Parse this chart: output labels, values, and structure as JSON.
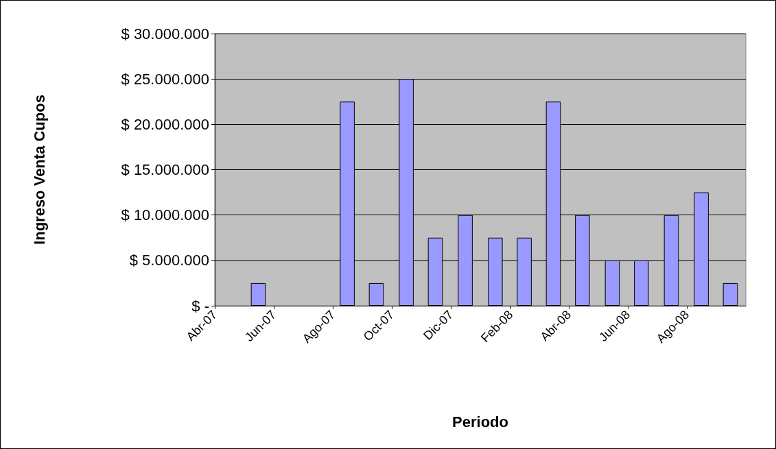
{
  "chart_data": {
    "type": "bar",
    "xlabel": "Periodo",
    "ylabel": "Ingreso Venta Cupos",
    "x": [
      "2007-05-16",
      "2007-08-16",
      "2007-09-15",
      "2007-10-16",
      "2007-11-15",
      "2007-12-16",
      "2008-01-16",
      "2008-02-15",
      "2008-03-16",
      "2008-04-15",
      "2008-05-16",
      "2008-06-15",
      "2008-07-16",
      "2008-08-16",
      "2008-09-15"
    ],
    "values": [
      2500000,
      22500000,
      2500000,
      25000000,
      7500000,
      10000000,
      7500000,
      7500000,
      22500000,
      10000000,
      5000000,
      5000000,
      10000000,
      12500000,
      2500000
    ],
    "color": "#9999ff",
    "xlim": [
      "2007-04",
      "2008-10"
    ],
    "xticks": [
      {
        "value": "2007-04",
        "label": "Abr-07"
      },
      {
        "value": "2007-06",
        "label": "Jun-07"
      },
      {
        "value": "2007-08",
        "label": "Ago-07"
      },
      {
        "value": "2007-10",
        "label": "Oct-07"
      },
      {
        "value": "2007-12",
        "label": "Dic-07"
      },
      {
        "value": "2008-02",
        "label": "Feb-08"
      },
      {
        "value": "2008-04",
        "label": "Abr-08"
      },
      {
        "value": "2008-06",
        "label": "Jun-08"
      },
      {
        "value": "2008-08",
        "label": "Ago-08"
      }
    ],
    "ylim": [
      0,
      30000000
    ],
    "yticks": [
      {
        "value": 0,
        "label": "$ -"
      },
      {
        "value": 5000000,
        "label": "$ 5.000.000"
      },
      {
        "value": 10000000,
        "label": "$ 10.000.000"
      },
      {
        "value": 15000000,
        "label": "$ 15.000.000"
      },
      {
        "value": 20000000,
        "label": "$ 20.000.000"
      },
      {
        "value": 25000000,
        "label": "$ 25.000.000"
      },
      {
        "value": 30000000,
        "label": "$ 30.000.000"
      }
    ],
    "grid": "y"
  }
}
